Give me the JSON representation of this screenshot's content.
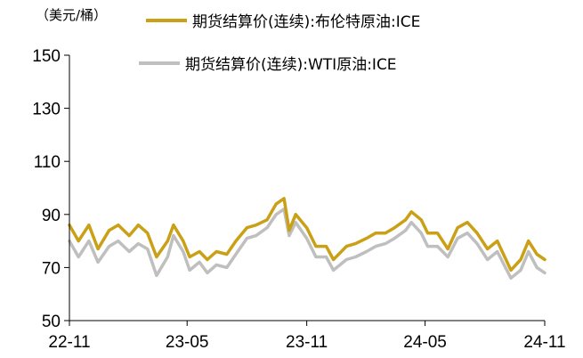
{
  "chart_data": {
    "type": "line",
    "unit_label": "（美元/桶）",
    "x_tick_labels": [
      "22-11",
      "23-05",
      "23-11",
      "24-05",
      "24-11"
    ],
    "x_tick_dates": [
      "2022-11-01",
      "2023-05-01",
      "2023-11-01",
      "2024-05-01",
      "2024-11-01"
    ],
    "ylim": [
      50,
      150
    ],
    "y_ticks": [
      50,
      70,
      90,
      110,
      130,
      150
    ],
    "grid": false,
    "legend_position": "top",
    "series": [
      {
        "name": "期货结算价(连续):布伦特原油:ICE",
        "color": "#C9A016",
        "points": [
          [
            "2022-11-01",
            86
          ],
          [
            "2022-11-15",
            80
          ],
          [
            "2022-12-01",
            86
          ],
          [
            "2022-12-15",
            77
          ],
          [
            "2023-01-01",
            84
          ],
          [
            "2023-01-15",
            86
          ],
          [
            "2023-02-01",
            82
          ],
          [
            "2023-02-15",
            86
          ],
          [
            "2023-03-01",
            83
          ],
          [
            "2023-03-15",
            74
          ],
          [
            "2023-04-01",
            80
          ],
          [
            "2023-04-10",
            86
          ],
          [
            "2023-04-25",
            80
          ],
          [
            "2023-05-05",
            74
          ],
          [
            "2023-05-20",
            76
          ],
          [
            "2023-06-01",
            73
          ],
          [
            "2023-06-15",
            76
          ],
          [
            "2023-07-01",
            75
          ],
          [
            "2023-07-15",
            80
          ],
          [
            "2023-08-01",
            85
          ],
          [
            "2023-08-15",
            86
          ],
          [
            "2023-09-01",
            88
          ],
          [
            "2023-09-15",
            94
          ],
          [
            "2023-09-27",
            96
          ],
          [
            "2023-10-05",
            84
          ],
          [
            "2023-10-15",
            90
          ],
          [
            "2023-11-01",
            85
          ],
          [
            "2023-11-15",
            78
          ],
          [
            "2023-12-01",
            78
          ],
          [
            "2023-12-12",
            73
          ],
          [
            "2024-01-01",
            78
          ],
          [
            "2024-01-15",
            79
          ],
          [
            "2024-02-01",
            81
          ],
          [
            "2024-02-15",
            83
          ],
          [
            "2024-03-01",
            83
          ],
          [
            "2024-03-15",
            85
          ],
          [
            "2024-04-01",
            88
          ],
          [
            "2024-04-10",
            91
          ],
          [
            "2024-04-25",
            88
          ],
          [
            "2024-05-05",
            83
          ],
          [
            "2024-05-20",
            83
          ],
          [
            "2024-06-05",
            77
          ],
          [
            "2024-06-20",
            85
          ],
          [
            "2024-07-05",
            87
          ],
          [
            "2024-07-20",
            83
          ],
          [
            "2024-08-05",
            77
          ],
          [
            "2024-08-20",
            80
          ],
          [
            "2024-09-10",
            69
          ],
          [
            "2024-09-25",
            73
          ],
          [
            "2024-10-07",
            80
          ],
          [
            "2024-10-20",
            75
          ],
          [
            "2024-11-01",
            73
          ]
        ]
      },
      {
        "name": "期货结算价(连续):WTI原油:ICE",
        "color": "#BFBFBF",
        "points": [
          [
            "2022-11-01",
            80
          ],
          [
            "2022-11-15",
            74
          ],
          [
            "2022-12-01",
            80
          ],
          [
            "2022-12-15",
            72
          ],
          [
            "2023-01-01",
            78
          ],
          [
            "2023-01-15",
            80
          ],
          [
            "2023-02-01",
            76
          ],
          [
            "2023-02-15",
            79
          ],
          [
            "2023-03-01",
            77
          ],
          [
            "2023-03-15",
            67
          ],
          [
            "2023-04-01",
            74
          ],
          [
            "2023-04-10",
            82
          ],
          [
            "2023-04-25",
            76
          ],
          [
            "2023-05-05",
            69
          ],
          [
            "2023-05-20",
            72
          ],
          [
            "2023-06-01",
            68
          ],
          [
            "2023-06-15",
            71
          ],
          [
            "2023-07-01",
            70
          ],
          [
            "2023-07-15",
            75
          ],
          [
            "2023-08-01",
            81
          ],
          [
            "2023-08-15",
            82
          ],
          [
            "2023-09-01",
            85
          ],
          [
            "2023-09-15",
            90
          ],
          [
            "2023-09-27",
            92
          ],
          [
            "2023-10-05",
            82
          ],
          [
            "2023-10-15",
            87
          ],
          [
            "2023-11-01",
            81
          ],
          [
            "2023-11-15",
            74
          ],
          [
            "2023-12-01",
            74
          ],
          [
            "2023-12-12",
            69
          ],
          [
            "2024-01-01",
            73
          ],
          [
            "2024-01-15",
            74
          ],
          [
            "2024-02-01",
            76
          ],
          [
            "2024-02-15",
            78
          ],
          [
            "2024-03-01",
            79
          ],
          [
            "2024-03-15",
            81
          ],
          [
            "2024-04-01",
            84
          ],
          [
            "2024-04-10",
            87
          ],
          [
            "2024-04-25",
            83
          ],
          [
            "2024-05-05",
            78
          ],
          [
            "2024-05-20",
            78
          ],
          [
            "2024-06-05",
            74
          ],
          [
            "2024-06-20",
            81
          ],
          [
            "2024-07-05",
            83
          ],
          [
            "2024-07-20",
            79
          ],
          [
            "2024-08-05",
            73
          ],
          [
            "2024-08-20",
            76
          ],
          [
            "2024-09-10",
            66
          ],
          [
            "2024-09-25",
            69
          ],
          [
            "2024-10-07",
            76
          ],
          [
            "2024-10-20",
            70
          ],
          [
            "2024-11-01",
            68
          ]
        ]
      }
    ]
  }
}
